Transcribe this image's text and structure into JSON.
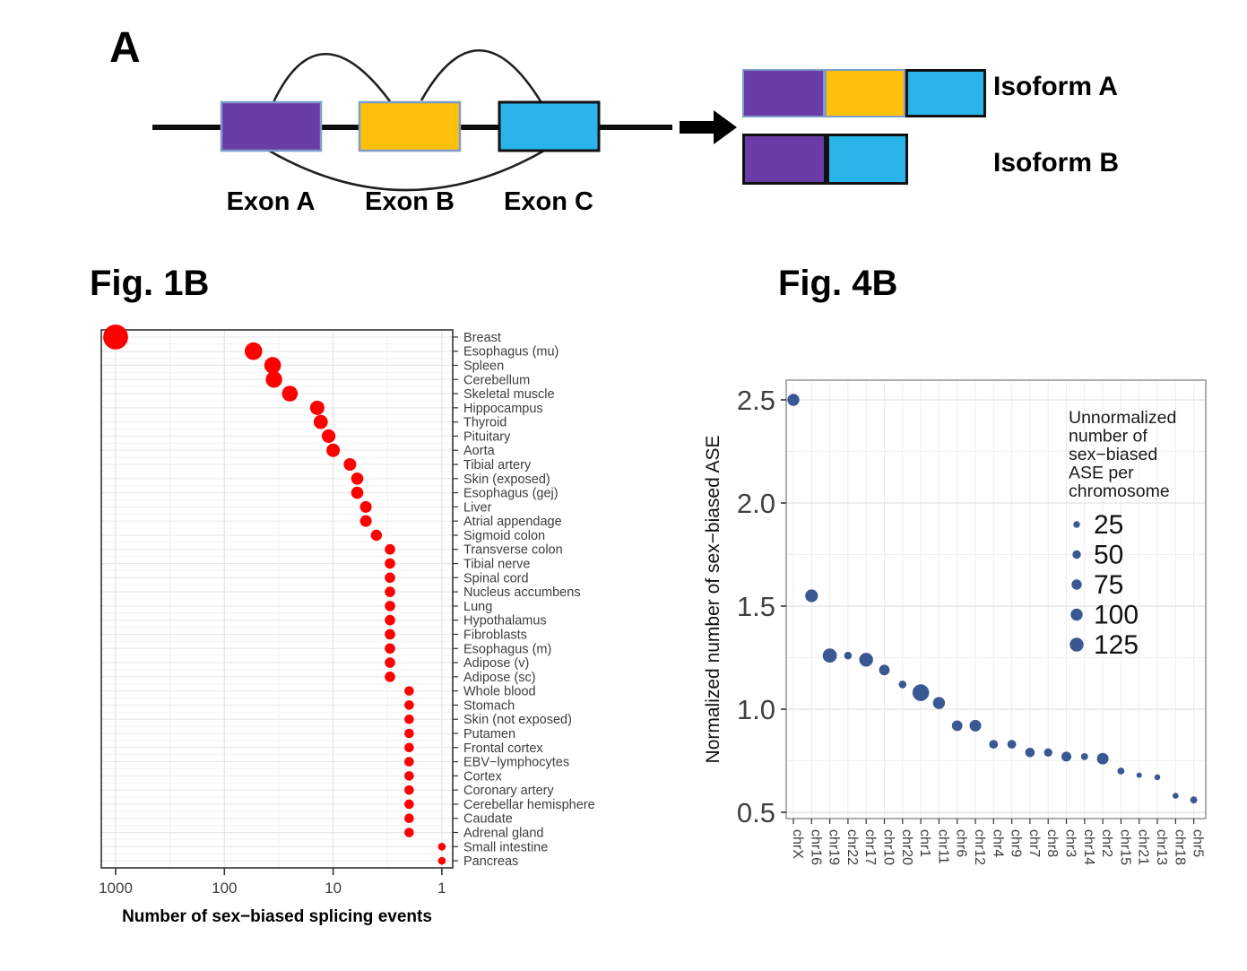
{
  "panel_a": {
    "label": "A",
    "exons": [
      {
        "name": "Exon A",
        "color": "#6A3CA5"
      },
      {
        "name": "Exon B",
        "color": "#FFC00B"
      },
      {
        "name": "Exon C",
        "color": "#29B5EA"
      }
    ],
    "isoforms": [
      {
        "label": "Isoform A",
        "segments": [
          "#6A3CA5",
          "#FFC00B",
          "#29B5EA"
        ]
      },
      {
        "label": "Isoform B",
        "segments": [
          "#6A3CA5",
          "#29B5EA"
        ]
      }
    ]
  },
  "chart_data": [
    {
      "id": "fig1b",
      "type": "scatter",
      "title": "Fig. 1B",
      "xlabel": "Number of sex−biased splicing events",
      "x_scale": "log10_reversed",
      "x_ticks": [
        1000,
        100,
        10,
        1
      ],
      "point_color": "#FE0000",
      "size_encodes": "value",
      "grid": true,
      "categories": [
        "Breast",
        "Esophagus (mu)",
        "Spleen",
        "Cerebellum",
        "Skeletal muscle",
        "Hippocampus",
        "Thyroid",
        "Pituitary",
        "Aorta",
        "Tibial artery",
        "Skin (exposed)",
        "Esophagus (gej)",
        "Liver",
        "Atrial appendage",
        "Sigmoid colon",
        "Transverse colon",
        "Tibial nerve",
        "Spinal cord",
        "Nucleus accumbens",
        "Lung",
        "Hypothalamus",
        "Fibroblasts",
        "Esophagus (m)",
        "Adipose (v)",
        "Adipose (sc)",
        "Whole blood",
        "Stomach",
        "Skin (not exposed)",
        "Putamen",
        "Frontal cortex",
        "EBV−lymphocytes",
        "Cortex",
        "Coronary artery",
        "Cerebellar hemisphere",
        "Caudate",
        "Adrenal gland",
        "Small intestine",
        "Pancreas"
      ],
      "values": [
        1000,
        54,
        36,
        35,
        25,
        14,
        13,
        11,
        10,
        7,
        6,
        6,
        5,
        5,
        4,
        3,
        3,
        3,
        3,
        3,
        3,
        3,
        3,
        3,
        3,
        2,
        2,
        2,
        2,
        2,
        2,
        2,
        2,
        2,
        2,
        2,
        1,
        1
      ]
    },
    {
      "id": "fig4b",
      "type": "bubble",
      "title": "Fig. 4B",
      "ylabel": "Normalized number of sex−biased ASE",
      "y_ticks": [
        "2.5",
        "2.0",
        "1.5",
        "1.0",
        "0.5"
      ],
      "ylim": [
        0.45,
        2.6
      ],
      "point_color": "#3A5894",
      "grid": true,
      "categories": [
        "chrX",
        "chr16",
        "chr19",
        "chr22",
        "chr17",
        "chr10",
        "chr20",
        "chr1",
        "chr11",
        "chr6",
        "chr12",
        "chr4",
        "chr9",
        "chr7",
        "chr8",
        "chr3",
        "chr14",
        "chr2",
        "chr15",
        "chr21",
        "chr13",
        "chr18",
        "chr5"
      ],
      "values": [
        2.5,
        1.55,
        1.26,
        1.26,
        1.24,
        1.19,
        1.12,
        1.08,
        1.03,
        0.92,
        0.92,
        0.83,
        0.83,
        0.79,
        0.79,
        0.77,
        0.77,
        0.76,
        0.7,
        0.68,
        0.67,
        0.58,
        0.56
      ],
      "sizes": [
        100,
        110,
        130,
        40,
        125,
        80,
        40,
        165,
        100,
        80,
        95,
        55,
        55,
        65,
        50,
        70,
        30,
        95,
        30,
        8,
        15,
        15,
        30
      ],
      "legend": {
        "title_lines": [
          "Unnormalized",
          "number of",
          "sex−biased",
          "ASE per",
          "chromosome"
        ],
        "sizes": [
          25,
          50,
          75,
          100,
          125
        ],
        "position": "inside top-right"
      }
    }
  ]
}
